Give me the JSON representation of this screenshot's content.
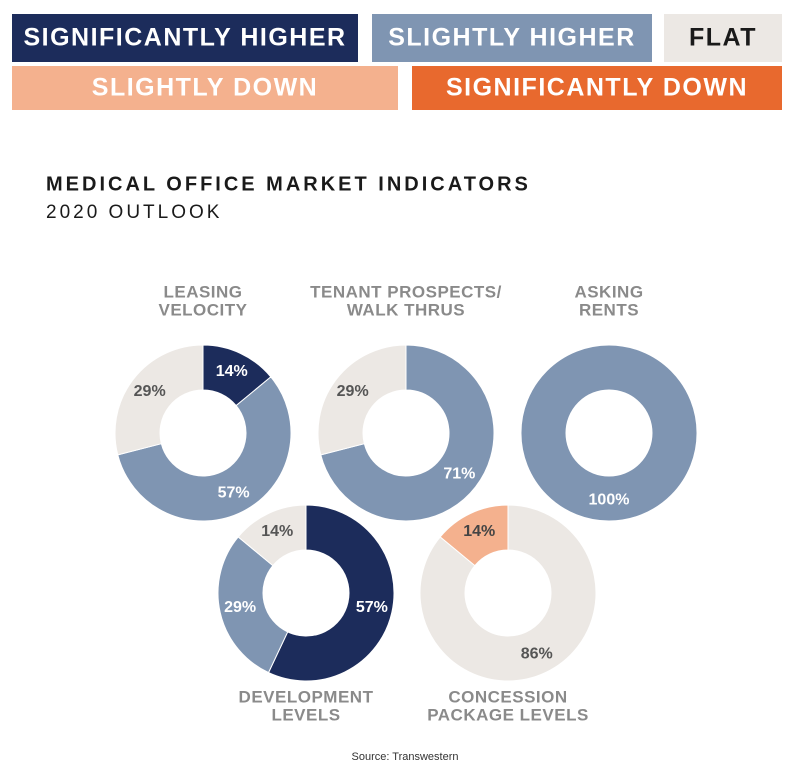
{
  "legend": [
    {
      "name": "SIGNIFICANTLY HIGHER",
      "color": "#1c2c5b"
    },
    {
      "name": "SLIGHTLY HIGHER",
      "color": "#7f95b2"
    },
    {
      "name": "FLAT",
      "color": "#ece8e4"
    },
    {
      "name": "SLIGHTLY DOWN",
      "color": "#f4b18e"
    },
    {
      "name": "SIGNIFICANTLY DOWN",
      "color": "#e8692e"
    }
  ],
  "title": "MEDICAL OFFICE MARKET INDICATORS",
  "subtitle": "2020 OUTLOOK",
  "chart_data": [
    {
      "type": "pie",
      "title_lines": [
        "LEASING",
        "VELOCITY"
      ],
      "values": [
        14,
        57,
        29
      ],
      "value_labels": [
        "14%",
        "57%",
        "29%"
      ],
      "colors": [
        "#1c2c5b",
        "#7f95b2",
        "#ece8e4"
      ]
    },
    {
      "type": "pie",
      "title_lines": [
        "TENANT PROSPECTS/",
        "WALK THRUS"
      ],
      "values": [
        71,
        29
      ],
      "value_labels": [
        "71%",
        "29%"
      ],
      "colors": [
        "#7f95b2",
        "#ece8e4"
      ]
    },
    {
      "type": "pie",
      "title_lines": [
        "ASKING",
        "RENTS"
      ],
      "values": [
        100
      ],
      "value_labels": [
        "100%"
      ],
      "colors": [
        "#7f95b2"
      ]
    },
    {
      "type": "pie",
      "title_lines": [
        "DEVELOPMENT",
        "LEVELS"
      ],
      "values": [
        57,
        29,
        14
      ],
      "value_labels": [
        "57%",
        "29%",
        "14%"
      ],
      "colors": [
        "#1c2c5b",
        "#7f95b2",
        "#ece8e4"
      ]
    },
    {
      "type": "pie",
      "title_lines": [
        "CONCESSION",
        "PACKAGE LEVELS"
      ],
      "values": [
        86,
        14
      ],
      "value_labels": [
        "86%",
        "14%"
      ],
      "colors": [
        "#ece8e4",
        "#f4b18e"
      ]
    }
  ],
  "source": "Source: Transwestern"
}
